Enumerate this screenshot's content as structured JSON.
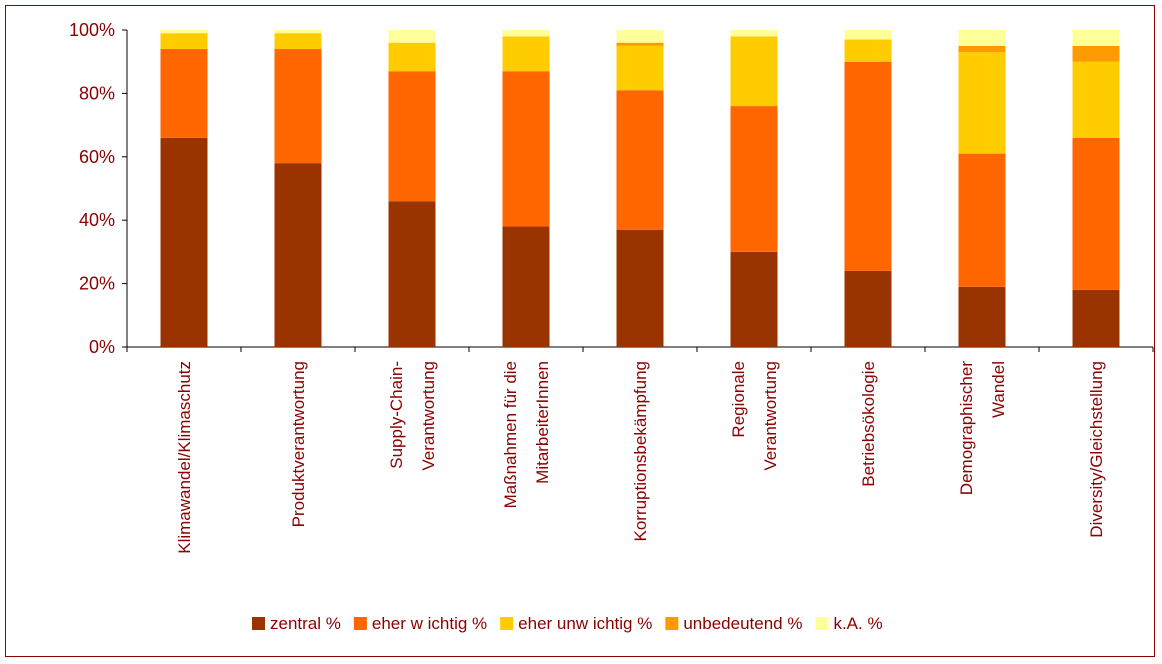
{
  "chart_data": {
    "type": "bar",
    "stacked": true,
    "categories": [
      [
        "Klimawandel/Klimaschutz"
      ],
      [
        "Produktverantwortung"
      ],
      [
        "Supply-Chain-",
        "Verantwortung"
      ],
      [
        "Maßnahmen für die",
        "MitarbeiterInnen"
      ],
      [
        "Korruptionsbekämpfung"
      ],
      [
        "Regionale",
        "Verantwortung"
      ],
      [
        "Betriebsökologie"
      ],
      [
        "Demographischer",
        "Wandel"
      ],
      [
        "Diversity/Gleichstellung"
      ]
    ],
    "series": [
      {
        "name": "zentral %",
        "color": "#993300",
        "values": [
          66,
          58,
          46,
          38,
          37,
          30,
          24,
          19,
          18
        ]
      },
      {
        "name": "eher w ichtig %",
        "color": "#ff6600",
        "values": [
          28,
          36,
          41,
          49,
          44,
          46,
          66,
          42,
          48
        ]
      },
      {
        "name": "eher unw ichtig %",
        "color": "#ffcc00",
        "values": [
          5,
          5,
          9,
          11,
          14,
          22,
          7,
          32,
          24
        ]
      },
      {
        "name": "unbedeutend %",
        "color": "#ff9900",
        "values": [
          0,
          0,
          0,
          0,
          1,
          0,
          0,
          2,
          5
        ]
      },
      {
        "name": "k.A. %",
        "color": "#ffff99",
        "values": [
          1,
          1,
          4,
          2,
          4,
          2,
          3,
          5,
          5
        ]
      }
    ],
    "ylim": [
      0,
      100
    ],
    "yticks": [
      0,
      20,
      40,
      60,
      80,
      100
    ],
    "ytick_suffix": "%",
    "legend_position": "bottom",
    "grid": false
  }
}
